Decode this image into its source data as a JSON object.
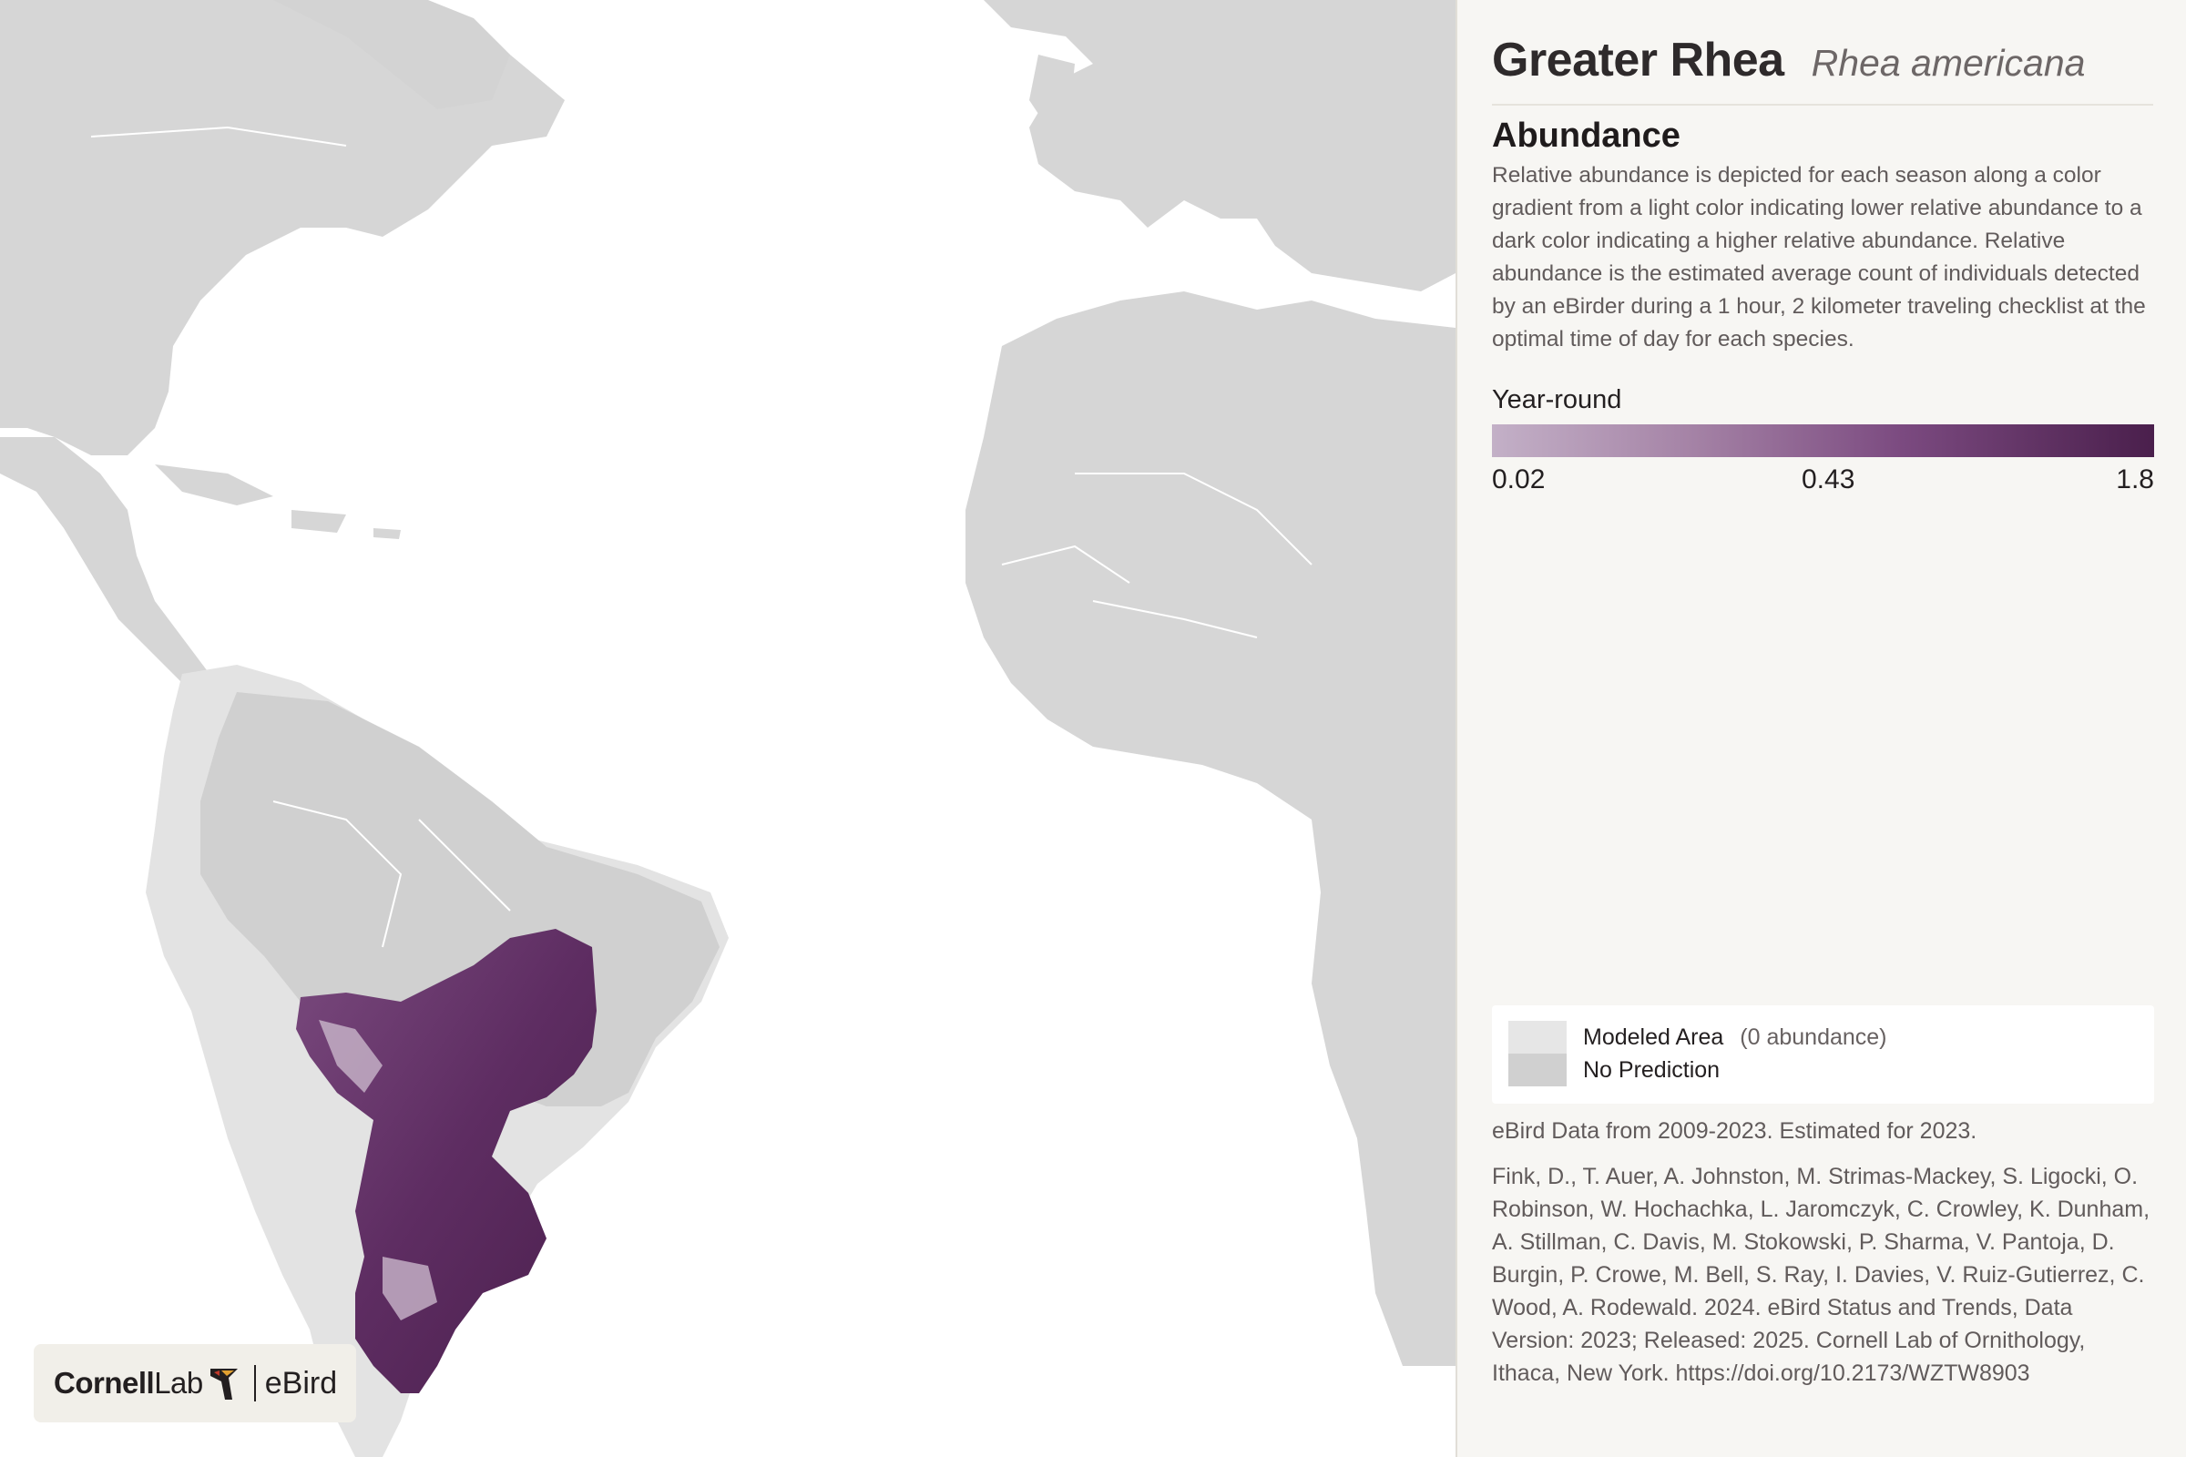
{
  "species": {
    "common_name": "Greater Rhea",
    "scientific_name": "Rhea americana"
  },
  "abundance": {
    "title": "Abundance",
    "description": "Relative abundance is depicted for each season along a color gradient from a light color indicating lower relative abundance to a dark color indicating a higher relative abundance. Relative abundance is the estimated average count of individuals detected by an eBirder during a 1 hour, 2 kilometer traveling checklist at the optimal time of day for each species."
  },
  "legend": {
    "season": "Year-round",
    "min": "0.02",
    "mid": "0.43",
    "max": "1.8",
    "gradient_colors": [
      "#c3b0c7",
      "#a583a6",
      "#7b4a80",
      "#4a1f4c"
    ]
  },
  "map_key": {
    "modeled_area_label": "Modeled Area",
    "modeled_area_note": "(0 abundance)",
    "no_prediction_label": "No Prediction",
    "colors": {
      "modeled_area": "#e6e6e6",
      "no_prediction": "#d0d0d0",
      "land": "#d6d6d6",
      "ocean": "#ffffff"
    }
  },
  "data_note": "eBird Data from 2009-2023. Estimated for 2023.",
  "citation": "Fink, D., T. Auer, A. Johnston, M. Strimas-Mackey, S. Ligocki, O. Robinson, W. Hochachka, L. Jaromczyk, C. Crowley, K. Dunham, A. Stillman, C. Davis, M. Stokowski, P. Sharma, V. Pantoja, D. Burgin, P. Crowe, M. Bell, S. Ray, I. Davies, V. Ruiz-Gutierrez, C. Wood, A. Rodewald. 2024. eBird Status and Trends, Data Version: 2023; Released: 2025. Cornell Lab of Ornithology, Ithaca, New York. https://doi.org/10.2173/WZTW8903",
  "logo": {
    "cornell": "Cornell",
    "lab": "Lab",
    "ebird": "eBird"
  }
}
